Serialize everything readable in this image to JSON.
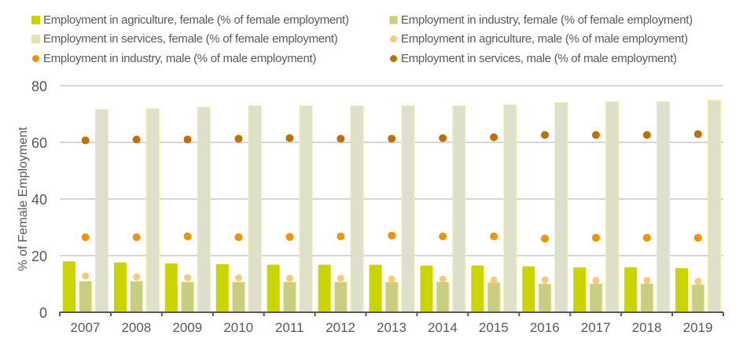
{
  "chart_data": {
    "type": "bar",
    "title": "",
    "xlabel": "",
    "ylabel": "% of Female Employment",
    "ylim": [
      0,
      80
    ],
    "yticks": [
      0,
      20,
      40,
      60,
      80
    ],
    "grid": true,
    "legend_position": "top",
    "categories": [
      "2007",
      "2008",
      "2009",
      "2010",
      "2011",
      "2012",
      "2013",
      "2014",
      "2015",
      "2016",
      "2017",
      "2018",
      "2019"
    ],
    "series": [
      {
        "name": "Employment in agriculture, female (% of female employment)",
        "mark": "bar",
        "color": "#cad400",
        "values": [
          18.0,
          17.6,
          17.3,
          17.0,
          16.8,
          16.8,
          16.8,
          16.5,
          16.5,
          16.2,
          15.9,
          15.9,
          15.6
        ]
      },
      {
        "name": "Employment in industry, female (% of female employment)",
        "mark": "bar",
        "color": "#c9cd80",
        "values": [
          11.0,
          11.0,
          10.7,
          10.7,
          10.7,
          10.7,
          10.7,
          10.7,
          10.6,
          10.1,
          10.1,
          10.1,
          9.8
        ]
      },
      {
        "name": "Employment in services, female (% of female employment)",
        "mark": "bar",
        "color": "#dfe0cc",
        "values": [
          71.6,
          71.9,
          72.4,
          72.9,
          72.9,
          72.9,
          72.9,
          72.9,
          73.2,
          74.0,
          74.3,
          74.3,
          74.8
        ]
      },
      {
        "name": "Employment in agriculture, male (% of male employment)",
        "mark": "dot",
        "color": "#fac77c",
        "values": [
          12.8,
          12.5,
          12.2,
          12.2,
          12.0,
          12.0,
          11.7,
          11.7,
          11.4,
          11.4,
          11.2,
          11.2,
          10.9
        ]
      },
      {
        "name": "Employment in industry, male (% of male employment)",
        "mark": "dot",
        "color": "#f29400",
        "values": [
          26.5,
          26.5,
          26.8,
          26.5,
          26.6,
          26.8,
          27.1,
          26.8,
          26.8,
          26.0,
          26.3,
          26.3,
          26.3
        ]
      },
      {
        "name": "Employment in services, male (% of male employment)",
        "mark": "dot",
        "color": "#c07000",
        "values": [
          60.7,
          61.0,
          61.0,
          61.3,
          61.5,
          61.3,
          61.3,
          61.5,
          61.8,
          62.6,
          62.6,
          62.6,
          62.9
        ]
      }
    ]
  }
}
